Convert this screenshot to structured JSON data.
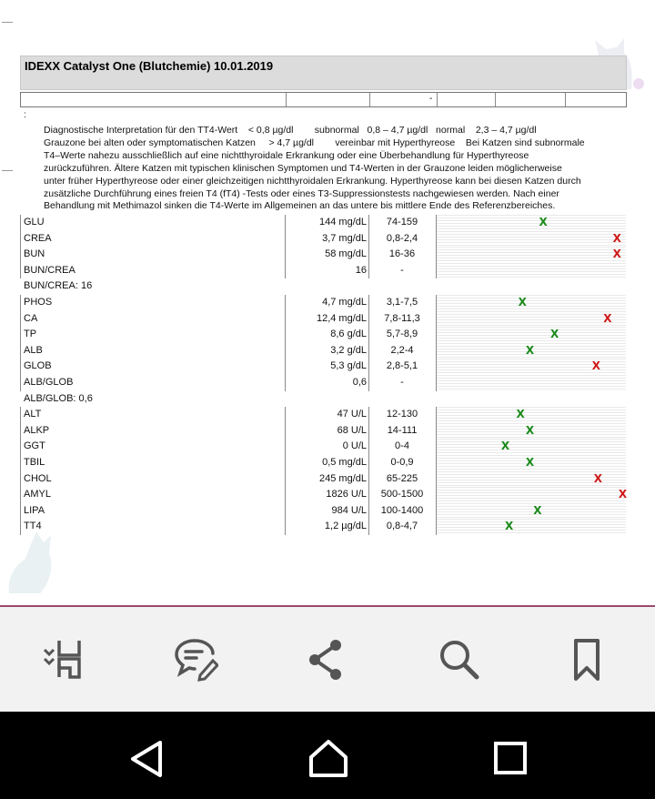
{
  "document": {
    "title": "IDEXX Catalyst One (Blutchemie) 10.01.2019",
    "header_row_dash": "-",
    "colon": ":",
    "interpretation_lines": [
      "Diagnostische Interpretation für den TT4-Wert    < 0,8 µg/dl        subnormal   0,8 – 4,7 µg/dl   normal    2,3 – 4,7 µg/dl",
      "Grauzone bei alten oder symptomatischen Katzen     > 4,7 µg/dl        vereinbar mit Hyperthyreose    Bei Katzen sind subnormale",
      "T4–Werte nahezu ausschließlich auf eine nichtthyroidale Erkrankung oder eine Überbehandlung für Hyperthyreose",
      "zurückzuführen. Ältere Katzen mit typischen klinischen Symptomen und T4-Werten in der Grauzone leiden möglicherweise",
      "unter früher Hyperthyreose oder einer gleichzeitigen nichtthyroidalen Erkrankung. Hyperthyreose kann bei diesen Katzen durch",
      "zusätzliche Durchführung eines freien T4 (fT4) -Tests oder eines T3-Suppressionstests nachgewiesen werden. Nach einer",
      "Behandlung mit Methimazol sinken die T4-Werte im Allgemeinen an das untere bis mittlere Ende des Referenzbereiches."
    ],
    "colors": {
      "in_range": "#1a8a1a",
      "out_of_range": "#d01818"
    },
    "rows": [
      {
        "name": "GLU",
        "value": "144 mg/dL",
        "ref": "74-159",
        "mark": "X",
        "status": "in",
        "level": 0.56
      },
      {
        "name": "CREA",
        "value": "3,7 mg/dL",
        "ref": "0,8-2,4",
        "mark": "X",
        "status": "out",
        "level": 0.95
      },
      {
        "name": "BUN",
        "value": "58 mg/dL",
        "ref": "16-36",
        "mark": "X",
        "status": "out",
        "level": 0.95
      },
      {
        "name": "BUN/CREA",
        "value": "16",
        "ref": "-",
        "mark": "",
        "status": "",
        "level": null
      },
      {
        "name": "BUN/CREA: 16",
        "value": "",
        "ref": "",
        "mark": "",
        "status": "",
        "level": null,
        "plain": true
      },
      {
        "name": "PHOS",
        "value": "4,7 mg/dL",
        "ref": "3,1-7,5",
        "mark": "X",
        "status": "in",
        "level": 0.45
      },
      {
        "name": "CA",
        "value": "12,4 mg/dL",
        "ref": "7,8-11,3",
        "mark": "X",
        "status": "out",
        "level": 0.9
      },
      {
        "name": "TP",
        "value": "8,6 g/dL",
        "ref": "5,7-8,9",
        "mark": "X",
        "status": "in",
        "level": 0.62
      },
      {
        "name": "ALB",
        "value": "3,2 g/dL",
        "ref": "2,2-4",
        "mark": "X",
        "status": "in",
        "level": 0.49
      },
      {
        "name": "GLOB",
        "value": "5,3 g/dL",
        "ref": "2,8-5,1",
        "mark": "X",
        "status": "out",
        "level": 0.84
      },
      {
        "name": "ALB/GLOB",
        "value": "0,6",
        "ref": "-",
        "mark": "",
        "status": "",
        "level": null
      },
      {
        "name": "ALB/GLOB: 0,6",
        "value": "",
        "ref": "",
        "mark": "",
        "status": "",
        "level": null,
        "plain": true
      },
      {
        "name": "ALT",
        "value": "47 U/L",
        "ref": "12-130",
        "mark": "X",
        "status": "in",
        "level": 0.44
      },
      {
        "name": "ALKP",
        "value": "68 U/L",
        "ref": "14-111",
        "mark": "X",
        "status": "in",
        "level": 0.49
      },
      {
        "name": "GGT",
        "value": "0 U/L",
        "ref": "0-4",
        "mark": "X",
        "status": "in",
        "level": 0.36
      },
      {
        "name": "TBIL",
        "value": "0,5 mg/dL",
        "ref": "0-0,9",
        "mark": "X",
        "status": "in",
        "level": 0.49
      },
      {
        "name": "CHOL",
        "value": "245 mg/dL",
        "ref": "65-225",
        "mark": "X",
        "status": "out",
        "level": 0.85
      },
      {
        "name": "AMYL",
        "value": "1826 U/L",
        "ref": "500-1500",
        "mark": "X",
        "status": "out",
        "level": 0.98
      },
      {
        "name": "LIPA",
        "value": "984 U/L",
        "ref": "100-1400",
        "mark": "X",
        "status": "in",
        "level": 0.53
      },
      {
        "name": "TT4",
        "value": "1,2  µg/dL",
        "ref": "0,8-4,7",
        "mark": "X",
        "status": "in",
        "level": 0.38
      }
    ]
  },
  "toolbar": {
    "items": [
      {
        "icon": "reading-view-icon"
      },
      {
        "icon": "comment-icon"
      },
      {
        "icon": "share-icon"
      },
      {
        "icon": "search-icon"
      },
      {
        "icon": "bookmark-icon"
      }
    ]
  },
  "navbar": {
    "items": [
      {
        "icon": "back-icon"
      },
      {
        "icon": "home-icon"
      },
      {
        "icon": "recents-icon"
      }
    ]
  }
}
